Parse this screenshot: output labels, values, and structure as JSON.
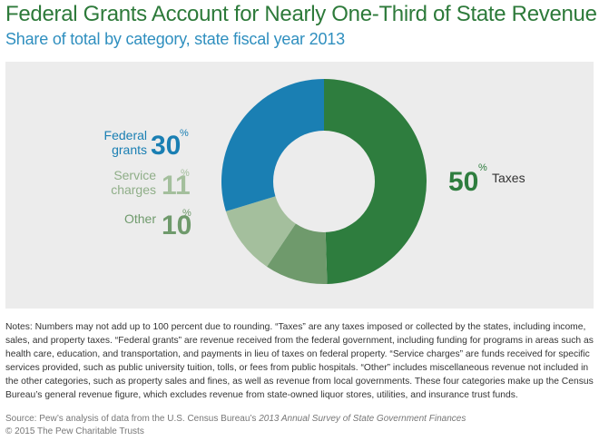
{
  "chart_data": {
    "type": "pie",
    "title": "Federal Grants Account for Nearly One-Third of State Revenue",
    "subtitle": "Share of total by category, state fiscal year 2013",
    "unit": "%",
    "slices": [
      {
        "name": "Taxes",
        "value": 50,
        "color": "#2e7d3e"
      },
      {
        "name": "Other",
        "value": 10,
        "color": "#6f9a6c"
      },
      {
        "name": "Service charges",
        "value": 11,
        "color": "#a4bf9d"
      },
      {
        "name": "Federal grants",
        "value": 30,
        "color": "#1a7fb3"
      }
    ],
    "labels": {
      "taxes": {
        "name": "Taxes",
        "value": "50",
        "unit": "%"
      },
      "federal": {
        "name_line1": "Federal",
        "name_line2": "grants",
        "value": "30",
        "unit": "%"
      },
      "service": {
        "name_line1": "Service",
        "name_line2": "charges",
        "value": "11",
        "unit": "%"
      },
      "other": {
        "name": "Other",
        "value": "10",
        "unit": "%"
      }
    }
  },
  "notes": "Notes: Numbers may not add up to 100 percent due to rounding. “Taxes” are any taxes imposed or collected by the states, including income, sales, and property taxes. “Federal grants” are revenue received from the federal government, including funding for programs in areas such as health care, education, and transportation, and payments in lieu of taxes on federal property. “Service charges” are funds received for specific services provided, such as public university tuition, tolls, or fees from public hospitals. “Other” includes miscellaneous revenue not included in the other categories, such as property sales and fines, as well as revenue from local governments. These four categories make up the Census Bureau’s general revenue figure, which excludes revenue from state-owned liquor stores, utilities, and insurance trust funds.",
  "source_prefix": "Source: Pew’s analysis of data from the U.S. Census Bureau’s ",
  "source_title": "2013 Annual Survey of State Government Finances",
  "copyright": "© 2015 The Pew Charitable Trusts"
}
